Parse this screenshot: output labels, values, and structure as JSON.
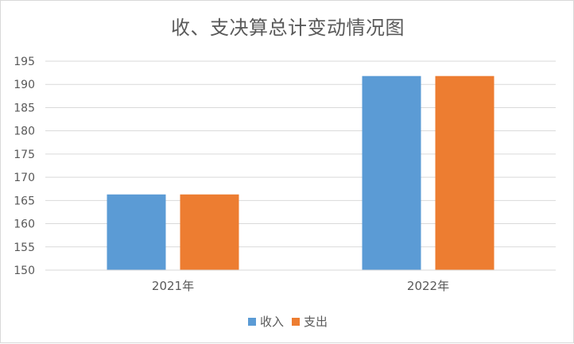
{
  "chart_data": {
    "type": "bar",
    "title": "收、支决算总计变动情况图",
    "categories": [
      "2021年",
      "2022年"
    ],
    "series": [
      {
        "name": "收入",
        "values": [
          166.3,
          191.8
        ],
        "color": "#5b9bd5"
      },
      {
        "name": "支出",
        "values": [
          166.3,
          191.8
        ],
        "color": "#ed7d31"
      }
    ],
    "ylim": [
      150,
      195
    ],
    "yticks": [
      150,
      155,
      160,
      165,
      170,
      175,
      180,
      185,
      190,
      195
    ],
    "grid": true,
    "legend_position": "bottom"
  }
}
